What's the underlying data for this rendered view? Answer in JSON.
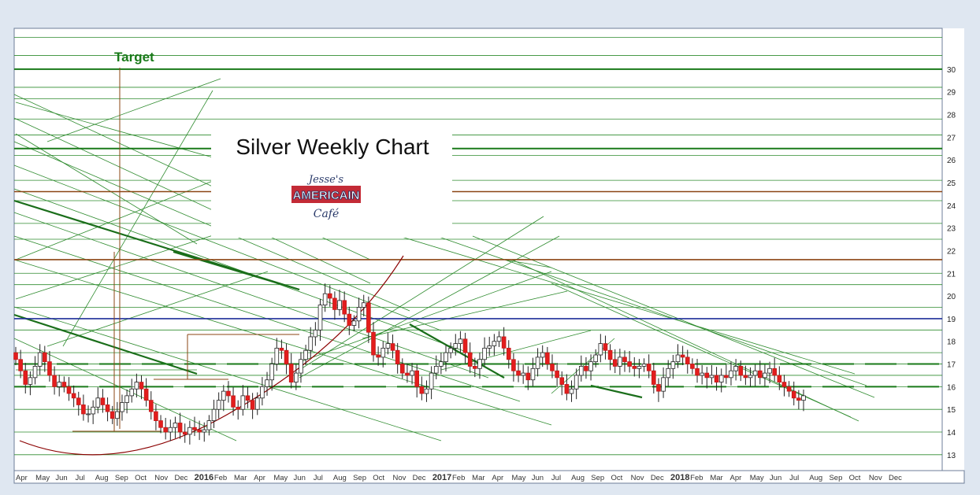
{
  "chart_data": {
    "type": "candlestick",
    "title": "Silver Weekly Chart",
    "logo_text": {
      "line1": "Jesse's",
      "line2": "AMERICAIN",
      "line3": "Café"
    },
    "annotations": [
      {
        "text": "Target",
        "color": "#1a7a1a"
      }
    ],
    "ylim": [
      12.3,
      31.8
    ],
    "y_ticks": [
      13,
      14,
      15,
      16,
      17,
      18,
      19,
      20,
      21,
      22,
      23,
      24,
      25,
      26,
      27,
      28,
      29,
      30
    ],
    "x_tick_labels": [
      "Apr",
      "May",
      "Jun",
      "Jul",
      "Aug",
      "Sep",
      "Oct",
      "Nov",
      "Dec",
      "2016",
      "Feb",
      "Mar",
      "Apr",
      "May",
      "Jun",
      "Jul",
      "Aug",
      "Sep",
      "Oct",
      "Nov",
      "Dec",
      "2017",
      "Feb",
      "Mar",
      "Apr",
      "May",
      "Jun",
      "Jul",
      "Aug",
      "Sep",
      "Oct",
      "Nov",
      "Dec",
      "2018",
      "Feb",
      "Mar",
      "Apr",
      "May",
      "Jun",
      "Jul",
      "Aug",
      "Sep",
      "Oct",
      "Nov",
      "Dec"
    ],
    "horizontal_levels": [
      {
        "y": 30.0,
        "color": "#1a7a1a",
        "style": "solid-thick"
      },
      {
        "y": 26.5,
        "color": "#1a7a1a",
        "style": "solid-thick"
      },
      {
        "y": 24.6,
        "color": "#8b4513",
        "style": "solid"
      },
      {
        "y": 21.6,
        "color": "#8b4513",
        "style": "solid"
      },
      {
        "y": 19.0,
        "color": "#1f2f99",
        "style": "solid"
      },
      {
        "y": 17.0,
        "color": "#1a7a1a",
        "style": "dashed-thick"
      },
      {
        "y": 16.0,
        "color": "#1a7a1a",
        "style": "dashed-thick"
      }
    ],
    "price_series_weekly_close": [
      17.2,
      16.7,
      16.1,
      16.4,
      16.9,
      17.5,
      17.1,
      16.5,
      16.0,
      16.2,
      16.0,
      15.7,
      15.5,
      15.2,
      14.8,
      14.8,
      15.1,
      15.5,
      15.2,
      14.9,
      14.6,
      14.9,
      15.3,
      15.6,
      15.9,
      16.2,
      15.9,
      15.4,
      14.9,
      14.5,
      14.2,
      14.0,
      14.2,
      14.4,
      14.0,
      13.9,
      14.2,
      14.1,
      14.0,
      14.1,
      14.5,
      15.0,
      15.4,
      15.8,
      15.6,
      15.1,
      15.0,
      15.6,
      15.4,
      15.0,
      15.5,
      16.0,
      16.3,
      17.0,
      17.7,
      17.6,
      17.0,
      16.2,
      16.6,
      17.2,
      17.6,
      18.2,
      18.5,
      19.6,
      20.1,
      19.9,
      19.4,
      19.8,
      19.2,
      18.7,
      18.9,
      19.5,
      19.7,
      18.4,
      17.4,
      17.3,
      17.7,
      17.9,
      17.6,
      17.0,
      16.6,
      16.5,
      16.7,
      16.0,
      15.7,
      15.9,
      16.6,
      16.9,
      17.1,
      17.5,
      17.7,
      17.9,
      18.1,
      17.5,
      16.9,
      16.8,
      17.2,
      17.7,
      17.8,
      18.0,
      18.2,
      17.7,
      17.2,
      16.7,
      16.5,
      16.6,
      16.3,
      16.8,
      17.3,
      17.5,
      17.0,
      16.7,
      16.4,
      16.1,
      15.7,
      15.9,
      16.5,
      16.9,
      16.7,
      17.1,
      17.4,
      17.9,
      17.6,
      17.2,
      16.9,
      17.3,
      17.1,
      16.9,
      16.8,
      16.9,
      17.0,
      16.7,
      16.1,
      15.8,
      16.4,
      16.8,
      17.1,
      17.4,
      17.3,
      17.0,
      16.8,
      16.5,
      16.6,
      16.4,
      16.5,
      16.2,
      16.5,
      16.4,
      16.7,
      16.9,
      16.5,
      16.4,
      16.5,
      16.7,
      16.4,
      16.6,
      16.8,
      16.5,
      16.2,
      16.0,
      15.8,
      15.5,
      15.4,
      15.6
    ]
  }
}
